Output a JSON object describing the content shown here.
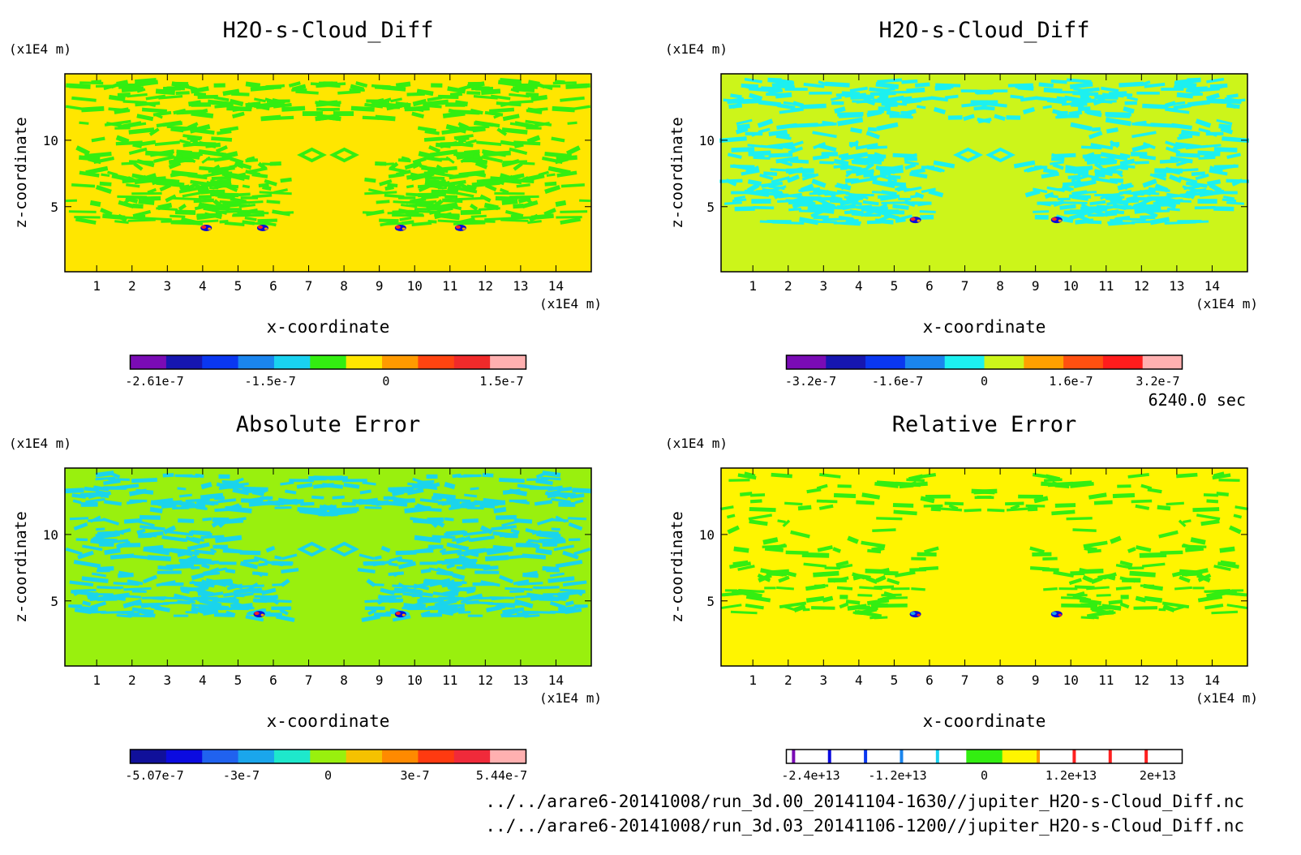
{
  "footer": {
    "time_label": "6240.0 sec",
    "files": [
      "../../arare6-20141008/run_3d.00_20141104-1630//jupiter_H2O-s-Cloud_Diff.nc",
      "../../arare6-20141008/run_3d.03_20141106-1200//jupiter_H2O-s-Cloud_Diff.nc"
    ]
  },
  "chart_data": [
    {
      "type": "heatmap",
      "title": "H2O-s-Cloud_Diff",
      "xlabel": "x-coordinate",
      "ylabel": "z-coordinate",
      "x_unit": "(x1E4 m)",
      "y_unit": "(x1E4 m)",
      "xlim": [
        0.1,
        15
      ],
      "ylim": [
        0.1,
        15
      ],
      "xticks": [
        "1",
        "2",
        "3",
        "4",
        "5",
        "6",
        "7",
        "8",
        "9",
        "10",
        "11",
        "12",
        "13",
        "14"
      ],
      "yticks": [
        "5",
        "10"
      ],
      "background": "#ffe600",
      "feature_color": "#33ee11",
      "hot_colors": [
        "#0b0bd8",
        "#ff2020",
        "#ff9a00"
      ],
      "colorbar": {
        "colors": [
          "#7a0bb5",
          "#1616b0",
          "#0a37f0",
          "#1a85ee",
          "#19d2f0",
          "#33ee11",
          "#ffe600",
          "#ff9a00",
          "#ff4410",
          "#f02a2a",
          "#ffb0b0"
        ],
        "labels": [
          "-2.61e-7",
          "-1.5e-7",
          "0",
          "1.5e-7"
        ]
      }
    },
    {
      "type": "heatmap",
      "title": "H2O-s-Cloud_Diff",
      "xlabel": "x-coordinate",
      "ylabel": "z-coordinate",
      "x_unit": "(x1E4 m)",
      "y_unit": "(x1E4 m)",
      "xlim": [
        0.1,
        15
      ],
      "ylim": [
        0.1,
        15
      ],
      "xticks": [
        "1",
        "2",
        "3",
        "4",
        "5",
        "6",
        "7",
        "8",
        "9",
        "10",
        "11",
        "12",
        "13",
        "14"
      ],
      "yticks": [
        "5",
        "10"
      ],
      "background": "#ccf51a",
      "feature_color": "#1cf0f0",
      "hot_colors": [
        "#0b0bd8",
        "#ff2020",
        "#ff9a00"
      ],
      "colorbar": {
        "colors": [
          "#7a0bb5",
          "#1616b0",
          "#0a37f0",
          "#1a85ee",
          "#1cf0f0",
          "#ccf51a",
          "#ffa000",
          "#ff5010",
          "#ff1c1c",
          "#ffb0b0"
        ],
        "labels": [
          "-3.2e-7",
          "-1.6e-7",
          "0",
          "1.6e-7",
          "3.2e-7"
        ]
      }
    },
    {
      "type": "heatmap",
      "title": "Absolute Error",
      "xlabel": "x-coordinate",
      "ylabel": "z-coordinate",
      "x_unit": "(x1E4 m)",
      "y_unit": "(x1E4 m)",
      "xlim": [
        0.1,
        15
      ],
      "ylim": [
        0.1,
        15
      ],
      "xticks": [
        "1",
        "2",
        "3",
        "4",
        "5",
        "6",
        "7",
        "8",
        "9",
        "10",
        "11",
        "12",
        "13",
        "14"
      ],
      "yticks": [
        "5",
        "10"
      ],
      "background": "#99f00e",
      "feature_color": "#1ad4ec",
      "hot_colors": [
        "#0b0bd8",
        "#ff2020",
        "#ff9a00"
      ],
      "colorbar": {
        "colors": [
          "#10109a",
          "#0b0be0",
          "#2062ef",
          "#1aa6ec",
          "#1ee8cc",
          "#99f00e",
          "#f5c200",
          "#ff8a00",
          "#ff3a10",
          "#f02a3a",
          "#ffb0b0"
        ],
        "labels": [
          "-5.07e-7",
          "-3e-7",
          "0",
          "3e-7",
          "5.44e-7"
        ]
      }
    },
    {
      "type": "heatmap",
      "title": "Relative Error",
      "xlabel": "x-coordinate",
      "ylabel": "z-coordinate",
      "x_unit": "(x1E4 m)",
      "y_unit": "(x1E4 m)",
      "xlim": [
        0.1,
        15
      ],
      "ylim": [
        0.1,
        15
      ],
      "xticks": [
        "1",
        "2",
        "3",
        "4",
        "5",
        "6",
        "7",
        "8",
        "9",
        "10",
        "11",
        "12",
        "13",
        "14"
      ],
      "yticks": [
        "5",
        "10"
      ],
      "background": "#fff500",
      "feature_color": "#33ee11",
      "hot_colors": [
        "#0b0bd8",
        "#1aa6ec",
        "#ff2020"
      ],
      "colorbar": {
        "colors": [
          "#ffffff",
          "#ffffff",
          "#ffffff",
          "#ffffff",
          "#ffffff",
          "#33ee11",
          "#fff500",
          "#ffffff",
          "#ffffff",
          "#ffffff",
          "#ffffff"
        ],
        "lines": [
          "#7a0bb5",
          "#0a0ae0",
          "#0a37f0",
          "#1a85ee",
          "#19d2f0",
          "#ff9a00",
          "#ff2020",
          "#ff2020",
          "#ff2020"
        ],
        "labels": [
          "-2.4e+13",
          "-1.2e+13",
          "0",
          "1.2e+13",
          "2e+13"
        ]
      }
    }
  ]
}
